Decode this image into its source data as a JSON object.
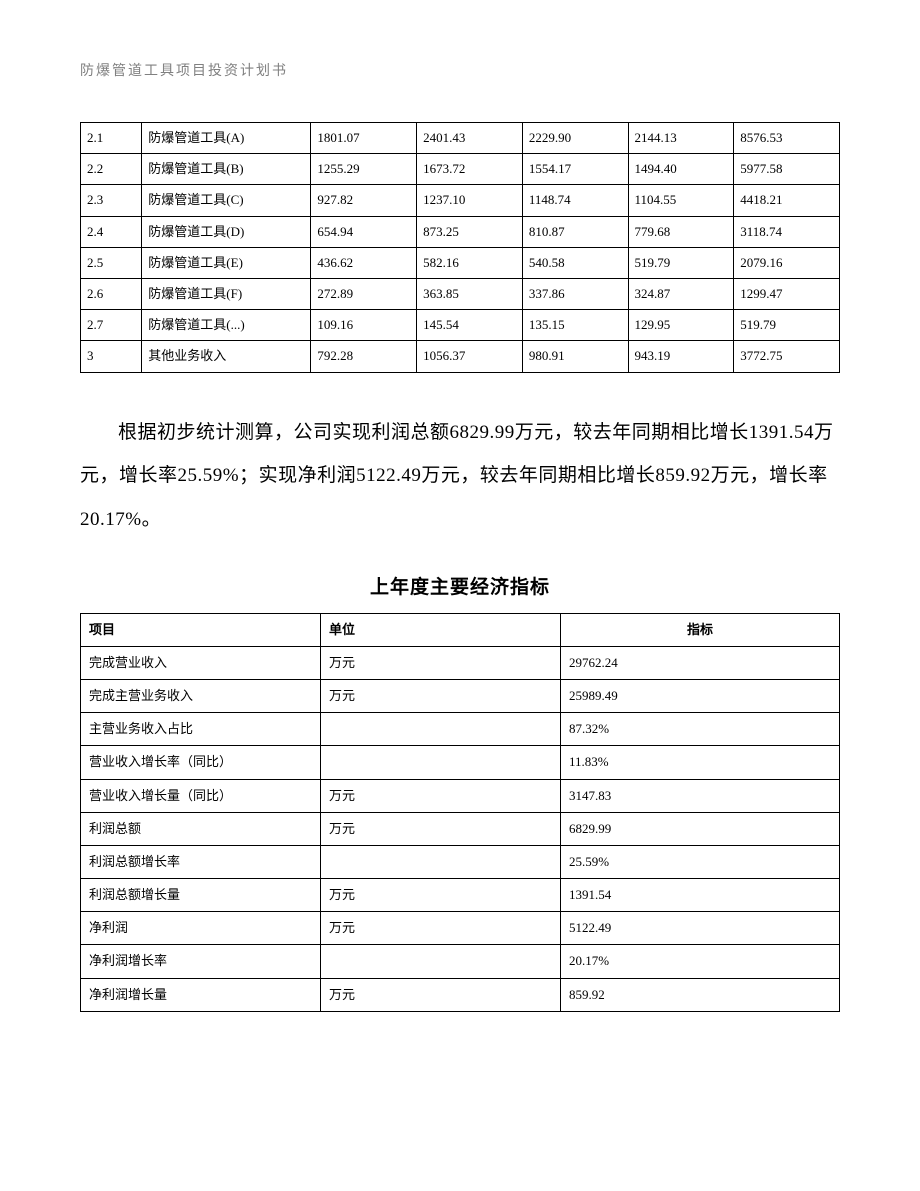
{
  "doc_header": "防爆管道工具项目投资计划书",
  "table1": {
    "rows": [
      {
        "idx": "2.1",
        "name": "防爆管道工具(A)",
        "v1": "1801.07",
        "v2": "2401.43",
        "v3": "2229.90",
        "v4": "2144.13",
        "sum": "8576.53"
      },
      {
        "idx": "2.2",
        "name": "防爆管道工具(B)",
        "v1": "1255.29",
        "v2": "1673.72",
        "v3": "1554.17",
        "v4": "1494.40",
        "sum": "5977.58"
      },
      {
        "idx": "2.3",
        "name": "防爆管道工具(C)",
        "v1": "927.82",
        "v2": "1237.10",
        "v3": "1148.74",
        "v4": "1104.55",
        "sum": "4418.21"
      },
      {
        "idx": "2.4",
        "name": "防爆管道工具(D)",
        "v1": "654.94",
        "v2": "873.25",
        "v3": "810.87",
        "v4": "779.68",
        "sum": "3118.74"
      },
      {
        "idx": "2.5",
        "name": "防爆管道工具(E)",
        "v1": "436.62",
        "v2": "582.16",
        "v3": "540.58",
        "v4": "519.79",
        "sum": "2079.16"
      },
      {
        "idx": "2.6",
        "name": "防爆管道工具(F)",
        "v1": "272.89",
        "v2": "363.85",
        "v3": "337.86",
        "v4": "324.87",
        "sum": "1299.47"
      },
      {
        "idx": "2.7",
        "name": "防爆管道工具(...)",
        "v1": "109.16",
        "v2": "145.54",
        "v3": "135.15",
        "v4": "129.95",
        "sum": "519.79"
      },
      {
        "idx": "3",
        "name": "其他业务收入",
        "v1": "792.28",
        "v2": "1056.37",
        "v3": "980.91",
        "v4": "943.19",
        "sum": "3772.75"
      }
    ]
  },
  "paragraph": "根据初步统计测算，公司实现利润总额6829.99万元，较去年同期相比增长1391.54万元，增长率25.59%；实现净利润5122.49万元，较去年同期相比增长859.92万元，增长率20.17%。",
  "section_title": "上年度主要经济指标",
  "table2": {
    "headers": {
      "item": "项目",
      "unit": "单位",
      "val": "指标"
    },
    "rows": [
      {
        "item": "完成营业收入",
        "unit": "万元",
        "val": "29762.24"
      },
      {
        "item": "完成主营业务收入",
        "unit": "万元",
        "val": "25989.49"
      },
      {
        "item": "主营业务收入占比",
        "unit": "",
        "val": "87.32%"
      },
      {
        "item": "营业收入增长率（同比）",
        "unit": "",
        "val": "11.83%"
      },
      {
        "item": "营业收入增长量（同比）",
        "unit": "万元",
        "val": "3147.83"
      },
      {
        "item": "利润总额",
        "unit": "万元",
        "val": "6829.99"
      },
      {
        "item": "利润总额增长率",
        "unit": "",
        "val": "25.59%"
      },
      {
        "item": "利润总额增长量",
        "unit": "万元",
        "val": "1391.54"
      },
      {
        "item": "净利润",
        "unit": "万元",
        "val": "5122.49"
      },
      {
        "item": "净利润增长率",
        "unit": "",
        "val": "20.17%"
      },
      {
        "item": "净利润增长量",
        "unit": "万元",
        "val": "859.92"
      }
    ]
  }
}
